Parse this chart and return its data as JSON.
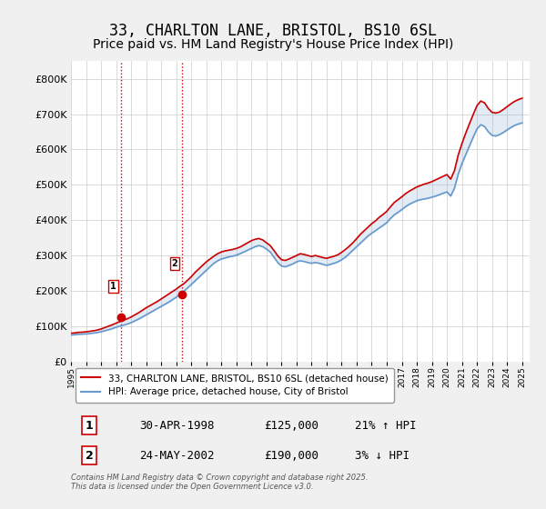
{
  "title": "33, CHARLTON LANE, BRISTOL, BS10 6SL",
  "subtitle": "Price paid vs. HM Land Registry's House Price Index (HPI)",
  "xlabel": "",
  "ylabel": "",
  "ylim": [
    0,
    850000
  ],
  "xlim": [
    1995.0,
    2025.5
  ],
  "background_color": "#f0f0f0",
  "plot_bg_color": "#ffffff",
  "grid_color": "#cccccc",
  "title_fontsize": 12,
  "subtitle_fontsize": 10,
  "legend_label_red": "33, CHARLTON LANE, BRISTOL, BS10 6SL (detached house)",
  "legend_label_blue": "HPI: Average price, detached house, City of Bristol",
  "sale1_date": 1998.33,
  "sale1_price": 125000,
  "sale1_label": "1",
  "sale2_date": 2002.39,
  "sale2_price": 190000,
  "sale2_label": "2",
  "table_rows": [
    [
      "1",
      "30-APR-1998",
      "£125,000",
      "21% ↑ HPI"
    ],
    [
      "2",
      "24-MAY-2002",
      "£190,000",
      "3% ↓ HPI"
    ]
  ],
  "footnote": "Contains HM Land Registry data © Crown copyright and database right 2025.\nThis data is licensed under the Open Government Licence v3.0.",
  "red_line_color": "#cc0000",
  "blue_line_color": "#6699cc",
  "sale_dot_color": "#cc0000",
  "vline_color": "#cc0000",
  "vline_style": ":",
  "hpi_years": [
    1995.0,
    1995.25,
    1995.5,
    1995.75,
    1996.0,
    1996.25,
    1996.5,
    1996.75,
    1997.0,
    1997.25,
    1997.5,
    1997.75,
    1998.0,
    1998.25,
    1998.5,
    1998.75,
    1999.0,
    1999.25,
    1999.5,
    1999.75,
    2000.0,
    2000.25,
    2000.5,
    2000.75,
    2001.0,
    2001.25,
    2001.5,
    2001.75,
    2002.0,
    2002.25,
    2002.5,
    2002.75,
    2003.0,
    2003.25,
    2003.5,
    2003.75,
    2004.0,
    2004.25,
    2004.5,
    2004.75,
    2005.0,
    2005.25,
    2005.5,
    2005.75,
    2006.0,
    2006.25,
    2006.5,
    2006.75,
    2007.0,
    2007.25,
    2007.5,
    2007.75,
    2008.0,
    2008.25,
    2008.5,
    2008.75,
    2009.0,
    2009.25,
    2009.5,
    2009.75,
    2010.0,
    2010.25,
    2010.5,
    2010.75,
    2011.0,
    2011.25,
    2011.5,
    2011.75,
    2012.0,
    2012.25,
    2012.5,
    2012.75,
    2013.0,
    2013.25,
    2013.5,
    2013.75,
    2014.0,
    2014.25,
    2014.5,
    2014.75,
    2015.0,
    2015.25,
    2015.5,
    2015.75,
    2016.0,
    2016.25,
    2016.5,
    2016.75,
    2017.0,
    2017.25,
    2017.5,
    2017.75,
    2018.0,
    2018.25,
    2018.5,
    2018.75,
    2019.0,
    2019.25,
    2019.5,
    2019.75,
    2020.0,
    2020.25,
    2020.5,
    2020.75,
    2021.0,
    2021.25,
    2021.5,
    2021.75,
    2022.0,
    2022.25,
    2022.5,
    2022.75,
    2023.0,
    2023.25,
    2023.5,
    2023.75,
    2024.0,
    2024.25,
    2024.5,
    2024.75,
    2025.0
  ],
  "hpi_values": [
    75000,
    76000,
    77000,
    77500,
    78000,
    79000,
    80500,
    82000,
    84000,
    87000,
    90000,
    93000,
    97000,
    100000,
    103000,
    106000,
    110000,
    115000,
    120000,
    126000,
    132000,
    138000,
    144000,
    150000,
    156000,
    162000,
    168000,
    175000,
    182000,
    190000,
    198000,
    208000,
    218000,
    228000,
    238000,
    248000,
    258000,
    268000,
    278000,
    285000,
    290000,
    293000,
    296000,
    298000,
    301000,
    305000,
    310000,
    315000,
    320000,
    325000,
    328000,
    325000,
    318000,
    310000,
    295000,
    280000,
    270000,
    268000,
    272000,
    276000,
    282000,
    285000,
    283000,
    280000,
    278000,
    280000,
    278000,
    275000,
    272000,
    275000,
    278000,
    282000,
    288000,
    295000,
    305000,
    315000,
    325000,
    335000,
    345000,
    355000,
    363000,
    370000,
    378000,
    385000,
    393000,
    405000,
    415000,
    422000,
    430000,
    438000,
    445000,
    450000,
    455000,
    458000,
    460000,
    462000,
    465000,
    468000,
    472000,
    476000,
    480000,
    468000,
    490000,
    530000,
    560000,
    585000,
    610000,
    635000,
    658000,
    670000,
    665000,
    650000,
    640000,
    638000,
    642000,
    648000,
    655000,
    662000,
    668000,
    672000,
    675000
  ],
  "price_years": [
    1995.0,
    1995.25,
    1995.5,
    1995.75,
    1996.0,
    1996.25,
    1996.5,
    1996.75,
    1997.0,
    1997.25,
    1997.5,
    1997.75,
    1998.0,
    1998.25,
    1998.5,
    1998.75,
    1999.0,
    1999.25,
    1999.5,
    1999.75,
    2000.0,
    2000.25,
    2000.5,
    2000.75,
    2001.0,
    2001.25,
    2001.5,
    2001.75,
    2002.0,
    2002.25,
    2002.5,
    2002.75,
    2003.0,
    2003.25,
    2003.5,
    2003.75,
    2004.0,
    2004.25,
    2004.5,
    2004.75,
    2005.0,
    2005.25,
    2005.5,
    2005.75,
    2006.0,
    2006.25,
    2006.5,
    2006.75,
    2007.0,
    2007.25,
    2007.5,
    2007.75,
    2008.0,
    2008.25,
    2008.5,
    2008.75,
    2009.0,
    2009.25,
    2009.5,
    2009.75,
    2010.0,
    2010.25,
    2010.5,
    2010.75,
    2011.0,
    2011.25,
    2011.5,
    2011.75,
    2012.0,
    2012.25,
    2012.5,
    2012.75,
    2013.0,
    2013.25,
    2013.5,
    2013.75,
    2014.0,
    2014.25,
    2014.5,
    2014.75,
    2015.0,
    2015.25,
    2015.5,
    2015.75,
    2016.0,
    2016.25,
    2016.5,
    2016.75,
    2017.0,
    2017.25,
    2017.5,
    2017.75,
    2018.0,
    2018.25,
    2018.5,
    2018.75,
    2019.0,
    2019.25,
    2019.5,
    2019.75,
    2020.0,
    2020.25,
    2020.5,
    2020.75,
    2021.0,
    2021.25,
    2021.5,
    2021.75,
    2022.0,
    2022.25,
    2022.5,
    2022.75,
    2023.0,
    2023.25,
    2023.5,
    2023.75,
    2024.0,
    2024.25,
    2024.5,
    2024.75,
    2025.0
  ],
  "price_values": [
    80000,
    81000,
    82500,
    83000,
    84000,
    85500,
    87000,
    89000,
    92000,
    96000,
    100000,
    104000,
    108500,
    113000,
    117000,
    121000,
    126000,
    132000,
    138000,
    145000,
    152000,
    158000,
    164000,
    170000,
    177000,
    184000,
    191000,
    198000,
    205000,
    213000,
    220000,
    230000,
    240000,
    252000,
    262000,
    272000,
    282000,
    290000,
    298000,
    305000,
    310000,
    313000,
    315000,
    317000,
    320000,
    324000,
    330000,
    336000,
    342000,
    346000,
    348000,
    344000,
    336000,
    328000,
    314000,
    299000,
    288000,
    286000,
    290000,
    295000,
    300000,
    305000,
    303000,
    300000,
    297000,
    300000,
    297000,
    294000,
    292000,
    295000,
    298000,
    302000,
    309000,
    317000,
    326000,
    336000,
    348000,
    360000,
    370000,
    380000,
    390000,
    398000,
    408000,
    416000,
    425000,
    438000,
    450000,
    458000,
    466000,
    475000,
    482000,
    488000,
    494000,
    498000,
    502000,
    505000,
    509000,
    514000,
    519000,
    524000,
    529000,
    516000,
    540000,
    584000,
    617000,
    646000,
    673000,
    699000,
    724000,
    737000,
    732000,
    716000,
    705000,
    703000,
    706000,
    713000,
    721000,
    729000,
    736000,
    741000,
    745000
  ]
}
